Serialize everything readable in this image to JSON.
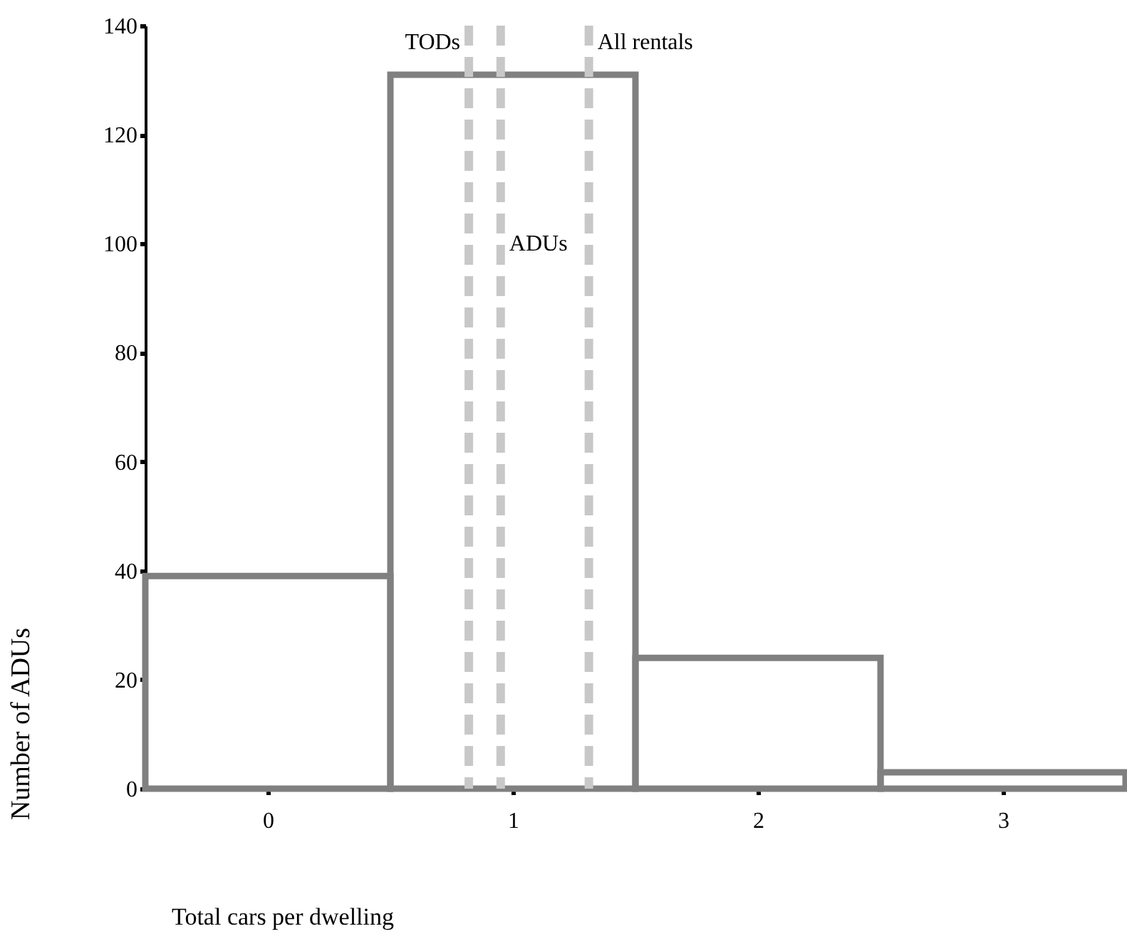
{
  "chart_data": {
    "type": "histogram",
    "xlabel": "Total cars per dwelling",
    "ylabel": "Number of ADUs",
    "bins": [
      -0.5,
      0.5,
      1.5,
      2.5,
      3.5
    ],
    "values": [
      39,
      131,
      24,
      3
    ],
    "color": "#808080",
    "xlim": [
      -0.5,
      3.5
    ],
    "xticks": [
      0,
      1,
      2,
      3
    ],
    "ylim": [
      0,
      140
    ],
    "yticks": [
      0,
      20,
      40,
      60,
      80,
      100,
      120,
      140
    ],
    "grid": false,
    "ref_lines": [
      {
        "axis": "x",
        "value": 0.82,
        "label": "TODs",
        "color": "#c8c8c8",
        "line_style": "dashed"
      },
      {
        "axis": "x",
        "value": 0.95,
        "label": "ADUs",
        "color": "#c8c8c8",
        "line_style": "dashed"
      },
      {
        "axis": "x",
        "value": 1.31,
        "label": "All rentals",
        "color": "#c8c8c8",
        "line_style": "dashed"
      }
    ]
  }
}
